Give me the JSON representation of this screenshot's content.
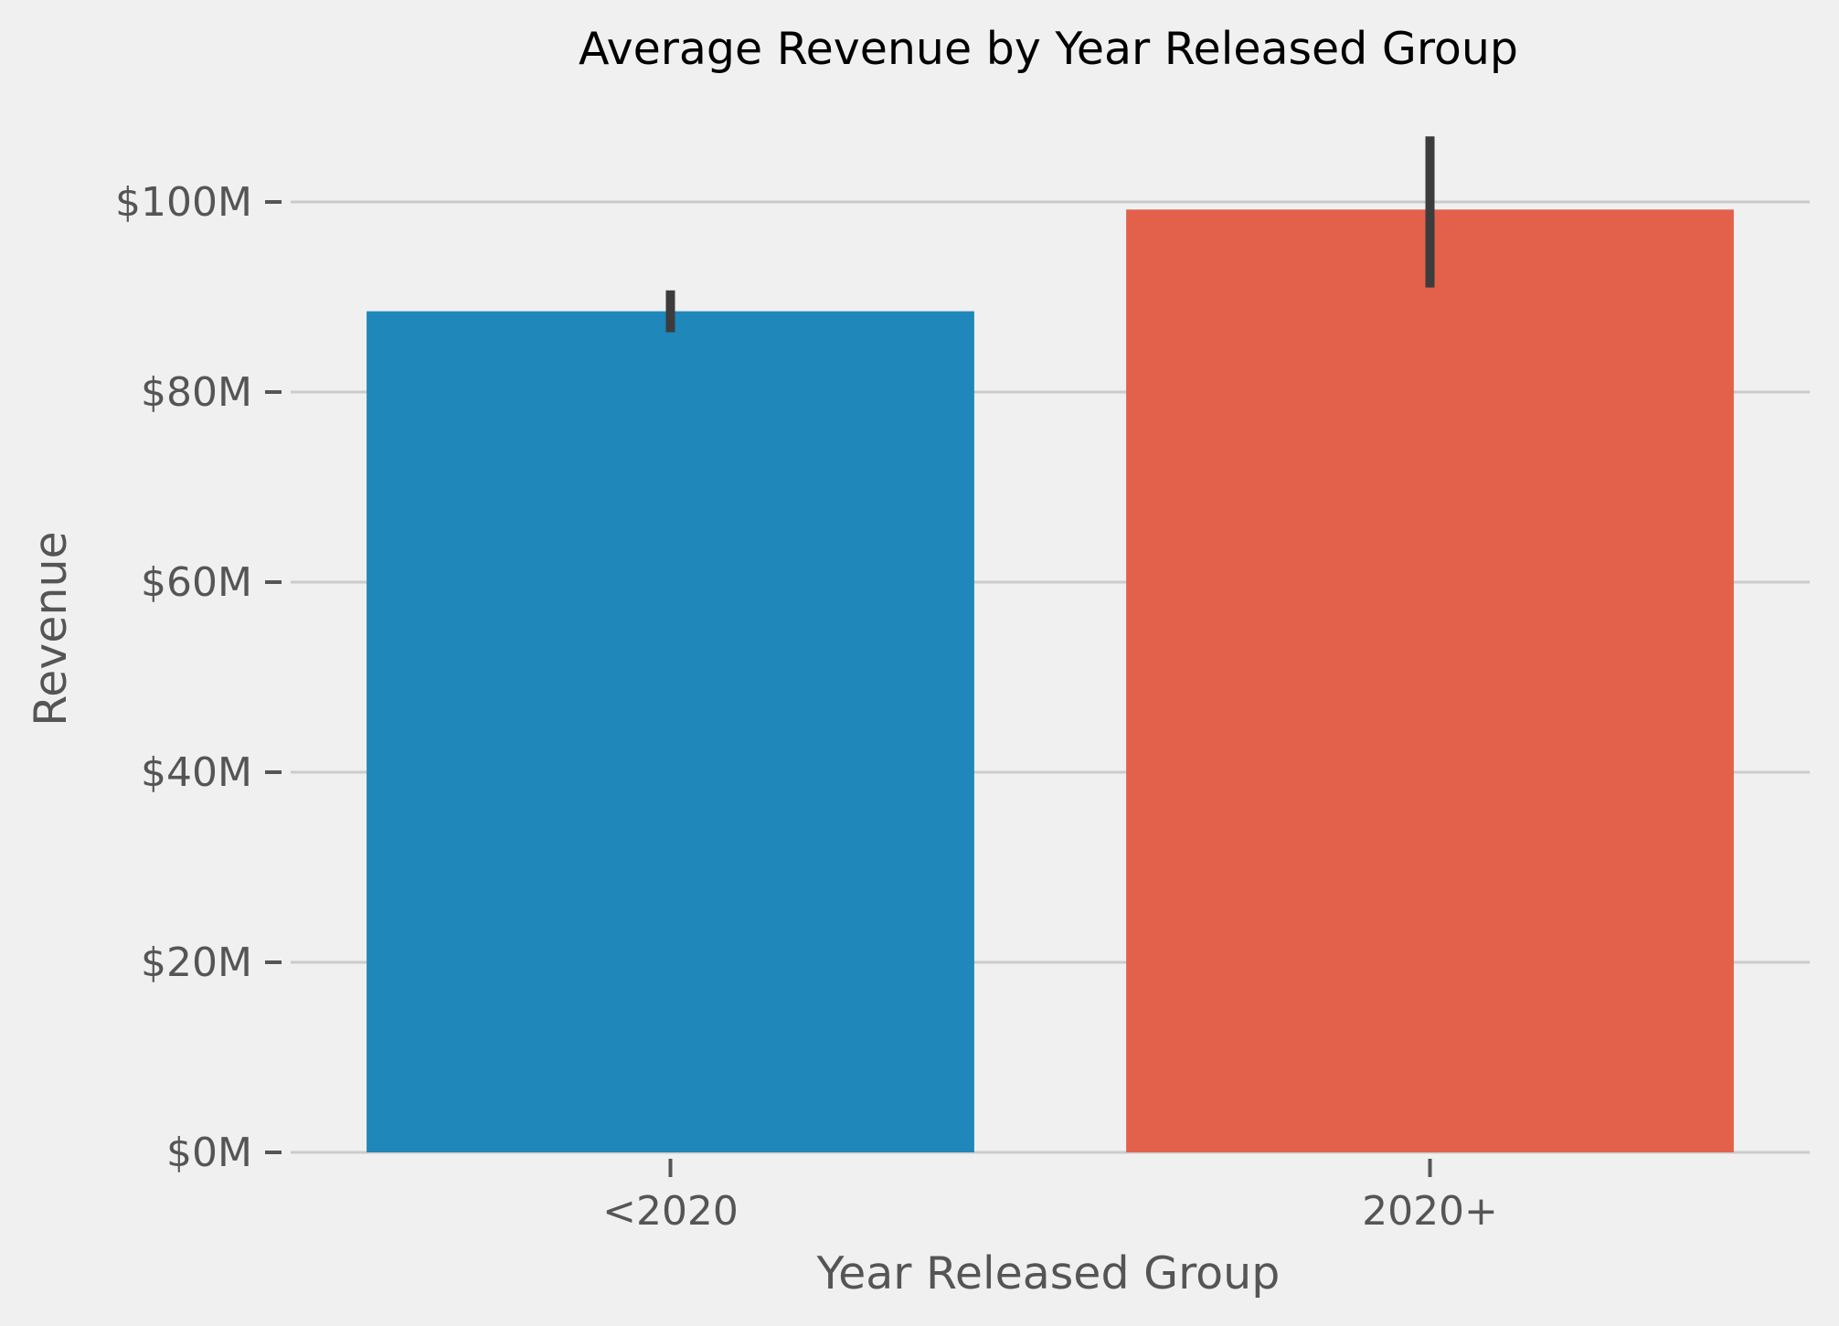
{
  "chart_data": {
    "type": "bar",
    "title": "Average Revenue by Year Released Group",
    "xlabel": "Year Released Group",
    "ylabel": "Revenue",
    "categories": [
      "<2020",
      "2020+"
    ],
    "values": [
      88.5,
      99.2
    ],
    "error_bars": [
      {
        "low": 86.3,
        "high": 90.7
      },
      {
        "low": 91.0,
        "high": 106.9
      }
    ],
    "ylim": [
      0,
      108
    ],
    "yticks": [
      0,
      20,
      40,
      60,
      80,
      100
    ],
    "ytick_labels": [
      "$0M",
      "$20M",
      "$40M",
      "$60M",
      "$80M",
      "$100M"
    ],
    "grid": "horizontal",
    "legend": "none",
    "colors": {
      "background": "#f0f0f0",
      "bars": [
        "#1f87ba",
        "#e3614b"
      ],
      "error_bar": "#3c3c3c",
      "grid": "#cbcbcb",
      "tick_text": "#555555",
      "title_text": "#000000"
    }
  }
}
